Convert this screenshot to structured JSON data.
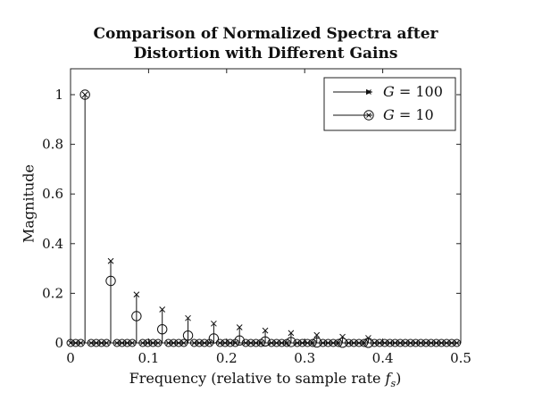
{
  "chart_data": {
    "type": "stem",
    "title_line1": "Comparison of Normalized Spectra after",
    "title_line2": "Distortion with Different Gains",
    "xlabel": "Frequency (relative to sample rate ",
    "xlabel_symbol": "f",
    "xlabel_sub": "s",
    "xlabel_end": ")",
    "ylabel": "Magnitude",
    "xlim": [
      0,
      0.5
    ],
    "ylim": [
      0,
      1.05
    ],
    "xticks": [
      0,
      0.1,
      0.2,
      0.3,
      0.4,
      0.5
    ],
    "xtick_labels": [
      "0",
      "0.1",
      "0.2",
      "0.3",
      "0.4",
      "0.5"
    ],
    "yticks": [
      0,
      0.2,
      0.4,
      0.6,
      0.8,
      1
    ],
    "ytick_labels": [
      "0",
      "0.2",
      "0.4",
      "0.6",
      "0.8",
      "1"
    ],
    "legend_position": "top-right",
    "harmonics_x": [
      0.0185,
      0.0515,
      0.0845,
      0.1175,
      0.1505,
      0.1835,
      0.2165,
      0.2495,
      0.2825,
      0.3155,
      0.3485,
      0.3815
    ],
    "series": [
      {
        "name": "G = 100",
        "marker": "x",
        "values": [
          1.0,
          0.33,
          0.195,
          0.135,
          0.1,
          0.078,
          0.063,
          0.05,
          0.04,
          0.032,
          0.025,
          0.02
        ]
      },
      {
        "name": "G = 10",
        "marker": "circle",
        "values": [
          1.0,
          0.25,
          0.108,
          0.055,
          0.03,
          0.018,
          0.01,
          0.006,
          0.004,
          0.002,
          0.001,
          0.0005
        ]
      }
    ],
    "baseline_spacing": 0.0066,
    "legend_name_prefix": "G",
    "legend_name_rest": [
      " = 100",
      " = 10"
    ]
  }
}
